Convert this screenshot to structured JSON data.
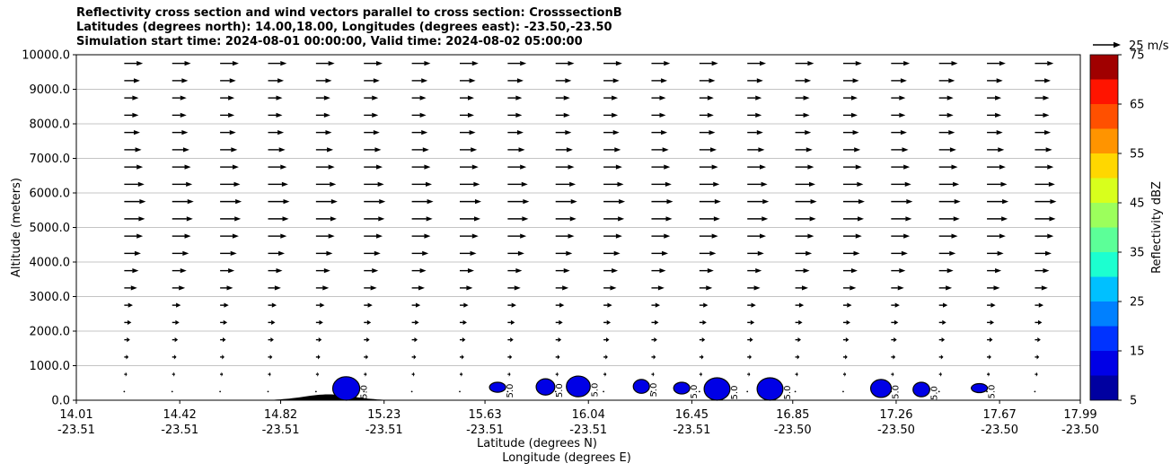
{
  "chart_data": {
    "type": "heatmap",
    "title_lines": [
      "Reflectivity cross section and wind vectors parallel to cross section: CrosssectionB",
      "Latitudes (degrees north): 14.00,18.00, Longitudes (degrees east): -23.50,-23.50",
      "Simulation start time: 2024-08-01 00:00:00, Valid time: 2024-08-02 05:00:00"
    ],
    "ylabel": "Altitude (meters)",
    "xlabel": "Latitude (degrees N)",
    "xlabel2": "Longitude (degrees E)",
    "ylim": [
      0,
      10000
    ],
    "yticks": [
      "0.0",
      "1000.0",
      "2000.0",
      "3000.0",
      "4000.0",
      "5000.0",
      "6000.0",
      "7000.0",
      "8000.0",
      "9000.0",
      "10000.0"
    ],
    "xlim": [
      14.01,
      17.99
    ],
    "xticks": [
      {
        "lat": "14.01",
        "lon": "-23.51"
      },
      {
        "lat": "14.42",
        "lon": "-23.51"
      },
      {
        "lat": "14.82",
        "lon": "-23.51"
      },
      {
        "lat": "15.23",
        "lon": "-23.51"
      },
      {
        "lat": "15.63",
        "lon": "-23.51"
      },
      {
        "lat": "16.04",
        "lon": "-23.51"
      },
      {
        "lat": "16.45",
        "lon": "-23.51"
      },
      {
        "lat": "16.85",
        "lon": "-23.50"
      },
      {
        "lat": "17.26",
        "lon": "-23.50"
      },
      {
        "lat": "17.67",
        "lon": "-23.50"
      },
      {
        "lat": "17.99",
        "lon": "-23.50"
      }
    ],
    "grid": "horizontal",
    "colorbar": {
      "label": "Reflectivity dBZ",
      "ticks": [
        "5",
        "15",
        "25",
        "35",
        "45",
        "55",
        "65",
        "75"
      ],
      "levels": [
        5,
        10,
        15,
        20,
        25,
        30,
        35,
        40,
        45,
        50,
        55,
        60,
        65,
        70,
        75
      ],
      "colors": [
        "#0000a0",
        "#0000e6",
        "#0033ff",
        "#0080ff",
        "#00c0ff",
        "#1cffd0",
        "#5cff98",
        "#9cff5c",
        "#d8ff1c",
        "#ffd700",
        "#ff9400",
        "#ff5000",
        "#ff1400",
        "#a00000"
      ]
    },
    "quiver_key": "25 m/s",
    "contour_label": "5.0",
    "cells": [
      {
        "lat": 15.08,
        "alt_bottom": 0,
        "alt_top": 680,
        "dbz": 10
      },
      {
        "lat": 15.68,
        "alt_bottom": 230,
        "alt_top": 520,
        "dbz": 10
      },
      {
        "lat": 15.87,
        "alt_bottom": 150,
        "alt_top": 620,
        "dbz": 10
      },
      {
        "lat": 16.0,
        "alt_bottom": 100,
        "alt_top": 700,
        "dbz": 10
      },
      {
        "lat": 16.25,
        "alt_bottom": 200,
        "alt_top": 600,
        "dbz": 10
      },
      {
        "lat": 16.41,
        "alt_bottom": 180,
        "alt_top": 520,
        "dbz": 10
      },
      {
        "lat": 16.55,
        "alt_bottom": 0,
        "alt_top": 650,
        "dbz": 10
      },
      {
        "lat": 16.76,
        "alt_bottom": 0,
        "alt_top": 650,
        "dbz": 10
      },
      {
        "lat": 17.2,
        "alt_bottom": 80,
        "alt_top": 600,
        "dbz": 10
      },
      {
        "lat": 17.36,
        "alt_bottom": 100,
        "alt_top": 520,
        "dbz": 10
      },
      {
        "lat": 17.59,
        "alt_bottom": 220,
        "alt_top": 480,
        "dbz": 10
      }
    ],
    "wind": {
      "lat_start": 14.2,
      "lat_step": 0.19,
      "alt_start": 250,
      "alt_step": 500,
      "u_profile": [
        0.3,
        1,
        1.5,
        2,
        2.5,
        3,
        4.5,
        5,
        5.8,
        6.5,
        7.2,
        7.5,
        7,
        6.5,
        6,
        5.5,
        5,
        5,
        5.5,
        6.5
      ]
    },
    "terrain": {
      "lat_center": 15.01,
      "lat_half_width": 0.15,
      "alt_peak": 170
    }
  }
}
